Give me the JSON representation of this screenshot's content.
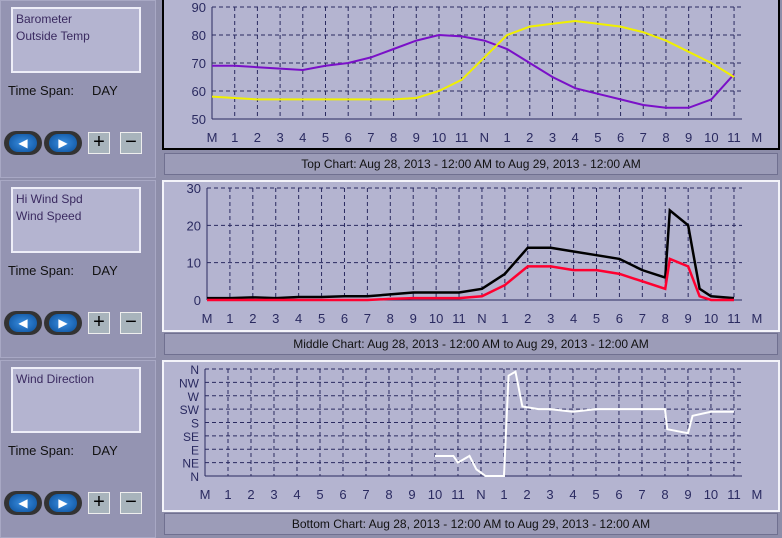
{
  "panels": [
    {
      "legend": [
        "Barometer",
        "Outside Temp"
      ],
      "time_span_label": "Time Span:",
      "time_span": "DAY",
      "caption": "Top Chart:  Aug 28, 2013 - 12:00 AM  to  Aug 29, 2013 - 12:00 AM"
    },
    {
      "legend": [
        "Hi Wind Spd",
        "Wind Speed"
      ],
      "time_span_label": "Time Span:",
      "time_span": "DAY",
      "caption": "Middle Chart:  Aug 28, 2013 - 12:00 AM  to  Aug 29, 2013 - 12:00 AM"
    },
    {
      "legend": [
        "Wind Direction",
        ""
      ],
      "time_span_label": "Time Span:",
      "time_span": "DAY",
      "caption": "Bottom Chart:  Aug 28, 2013 - 12:00 AM  to  Aug 29, 2013 - 12:00 AM"
    }
  ],
  "buttons": {
    "prev": "◀",
    "next": "▶",
    "plus": "+",
    "minus": "−"
  },
  "chart_data": [
    {
      "type": "line",
      "ylim": [
        50,
        90
      ],
      "yticks": [
        "50",
        "60",
        "70",
        "80",
        "90"
      ],
      "xticks": [
        "M",
        "1",
        "2",
        "3",
        "4",
        "5",
        "6",
        "7",
        "8",
        "9",
        "10",
        "11",
        "N",
        "1",
        "2",
        "3",
        "4",
        "5",
        "6",
        "7",
        "8",
        "9",
        "10",
        "11",
        "M"
      ],
      "series": [
        {
          "name": "Barometer",
          "color": "#7a10c8",
          "x": [
            0,
            1,
            2,
            3,
            4,
            5,
            6,
            7,
            8,
            9,
            10,
            11,
            12,
            13,
            14,
            15,
            16,
            17,
            18,
            19,
            20,
            21,
            22,
            23
          ],
          "y": [
            69,
            69,
            68.5,
            68,
            67.5,
            69,
            70,
            72,
            75,
            78,
            80,
            79.5,
            78,
            75,
            70,
            65,
            61,
            59,
            57,
            55,
            54,
            54,
            57,
            66
          ]
        },
        {
          "name": "Outside Temp",
          "color": "#f0f000",
          "x": [
            0,
            1,
            2,
            3,
            4,
            5,
            6,
            7,
            8,
            9,
            10,
            11,
            12,
            13,
            14,
            15,
            16,
            17,
            18,
            19,
            20,
            21,
            22,
            23
          ],
          "y": [
            58,
            57.5,
            57,
            57,
            57,
            57,
            57,
            57,
            57,
            57.5,
            60,
            64,
            72,
            80,
            83,
            84,
            85,
            84,
            83,
            81,
            78,
            74,
            70,
            65
          ]
        }
      ]
    },
    {
      "type": "line",
      "ylim": [
        0,
        30
      ],
      "yticks": [
        "0",
        "10",
        "20",
        "30"
      ],
      "xticks": [
        "M",
        "1",
        "2",
        "3",
        "4",
        "5",
        "6",
        "7",
        "8",
        "9",
        "10",
        "11",
        "N",
        "1",
        "2",
        "3",
        "4",
        "5",
        "6",
        "7",
        "8",
        "9",
        "10",
        "11",
        "M"
      ],
      "series": [
        {
          "name": "Hi Wind Spd",
          "color": "#000000",
          "x": [
            0,
            1,
            2,
            3,
            4,
            5,
            6,
            7,
            8,
            9,
            10,
            11,
            12,
            13,
            14,
            15,
            16,
            17,
            18,
            19,
            20,
            20.2,
            21,
            21.5,
            22,
            23
          ],
          "y": [
            0.5,
            0.5,
            0.7,
            0.5,
            0.8,
            0.8,
            1,
            1,
            1.5,
            2,
            2,
            2,
            3,
            7,
            14,
            14,
            13,
            12,
            11,
            8,
            6,
            24,
            20,
            3,
            1,
            0.5
          ]
        },
        {
          "name": "Wind Speed",
          "color": "#ff0030",
          "x": [
            0,
            1,
            2,
            3,
            4,
            5,
            6,
            7,
            8,
            9,
            10,
            11,
            12,
            13,
            14,
            15,
            16,
            17,
            18,
            19,
            20,
            20.2,
            21,
            21.5,
            22,
            23
          ],
          "y": [
            0,
            0,
            0,
            0,
            0,
            0,
            0,
            0,
            0.3,
            0.5,
            0.5,
            0.5,
            1,
            4,
            9,
            9,
            8,
            8,
            7,
            5,
            3,
            11,
            9,
            1,
            0,
            0
          ]
        }
      ]
    },
    {
      "type": "line",
      "ylim": [
        0,
        8
      ],
      "yticks": [
        "N",
        "NE",
        "E",
        "SE",
        "S",
        "SW",
        "W",
        "NW",
        "N"
      ],
      "xticks": [
        "M",
        "1",
        "2",
        "3",
        "4",
        "5",
        "6",
        "7",
        "8",
        "9",
        "10",
        "11",
        "N",
        "1",
        "2",
        "3",
        "4",
        "5",
        "6",
        "7",
        "8",
        "9",
        "10",
        "11",
        "M"
      ],
      "series": [
        {
          "name": "Wind Direction",
          "color": "#ffffff",
          "x": [
            10,
            10.8,
            11,
            11.5,
            11.8,
            12.2,
            12.5,
            13,
            13.2,
            13.5,
            13.8,
            14.5,
            15,
            16,
            17,
            18,
            19,
            20,
            20.1,
            21,
            21.2,
            22,
            23
          ],
          "y": [
            1.5,
            1.5,
            1,
            1.5,
            0.5,
            0,
            0,
            0,
            7.5,
            7.8,
            5.2,
            5,
            5,
            4.8,
            5,
            5,
            5,
            5,
            3.5,
            3.2,
            4.5,
            4.8,
            4.8
          ]
        }
      ]
    }
  ]
}
